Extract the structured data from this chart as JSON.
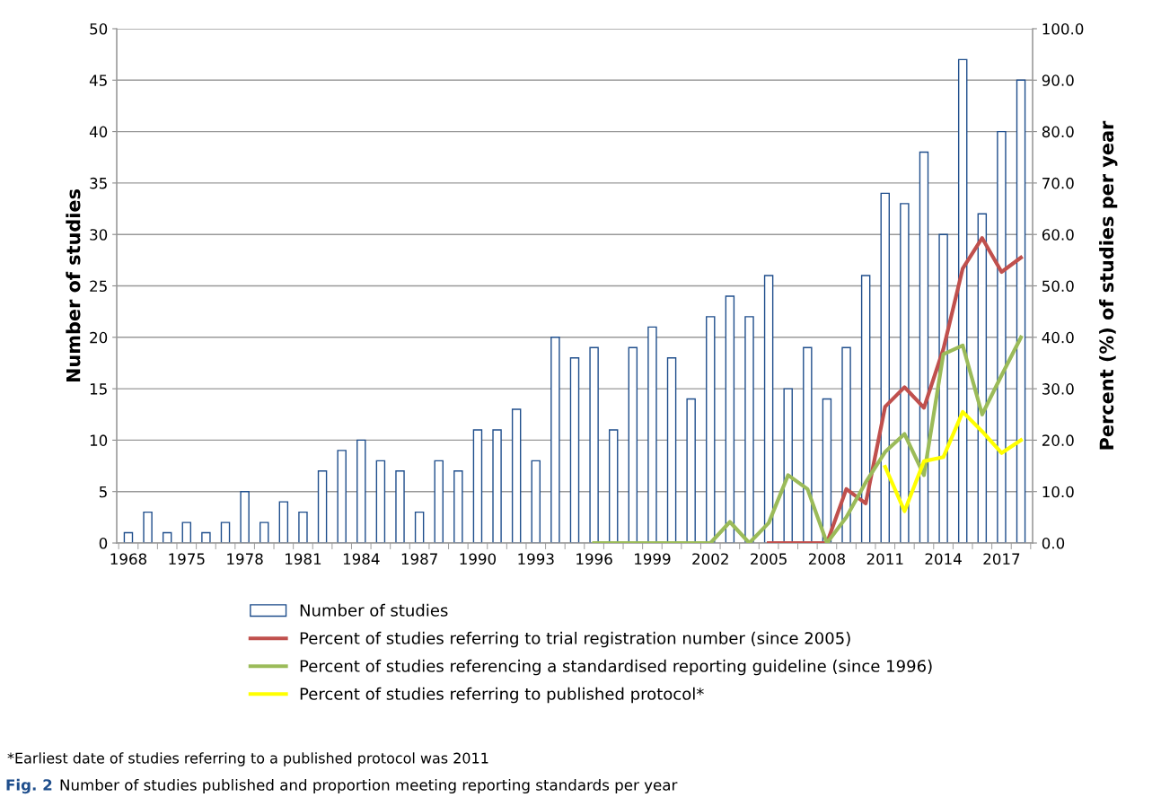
{
  "chart_data": {
    "type": "bar",
    "ylabel": "Number of studies",
    "y2label": "Percent (%) of studies per year",
    "categories": [
      "1968",
      null,
      null,
      "1975",
      null,
      null,
      "1978",
      null,
      null,
      "1981",
      null,
      null,
      "1984",
      null,
      null,
      "1987",
      null,
      null,
      "1990",
      null,
      null,
      "1993",
      null,
      null,
      "1996",
      null,
      null,
      "1999",
      null,
      null,
      "2002",
      null,
      null,
      "2005",
      null,
      null,
      "2008",
      null,
      null,
      "2011",
      null,
      null,
      "2014",
      null,
      null,
      "2017",
      null
    ],
    "series": [
      {
        "name": "Number of studies",
        "color": "#1f4e8c",
        "values": [
          1,
          3,
          1,
          2,
          1,
          2,
          5,
          2,
          4,
          3,
          7,
          9,
          10,
          8,
          7,
          3,
          8,
          7,
          11,
          11,
          13,
          8,
          20,
          18,
          19,
          11,
          19,
          21,
          18,
          14,
          22,
          24,
          22,
          26,
          15,
          19,
          14,
          19,
          26,
          34,
          33,
          38,
          30,
          47,
          32,
          40,
          45
        ]
      },
      {
        "name": "Percent of studies referring to trial registration number (since 2005)",
        "type": "line",
        "axis": "y2",
        "color": "#c0504d",
        "values": [
          null,
          null,
          null,
          null,
          null,
          null,
          null,
          null,
          null,
          null,
          null,
          null,
          null,
          null,
          null,
          null,
          null,
          null,
          null,
          null,
          null,
          null,
          null,
          null,
          null,
          null,
          null,
          null,
          null,
          null,
          null,
          null,
          null,
          0,
          0,
          0,
          0,
          10.5,
          7.7,
          26.5,
          30.3,
          26.3,
          37.7,
          53.4,
          59.3,
          52.7,
          55.5
        ]
      },
      {
        "name": "Percent of studies referencing a standardised reporting guideline (since 1996)",
        "type": "line",
        "axis": "y2",
        "color": "#9bbb59",
        "values": [
          null,
          null,
          null,
          null,
          null,
          null,
          null,
          null,
          null,
          null,
          null,
          null,
          null,
          null,
          null,
          null,
          null,
          null,
          null,
          null,
          null,
          null,
          null,
          null,
          0,
          0,
          0,
          0,
          0,
          0,
          0,
          4.1,
          0,
          3.9,
          13.2,
          10.5,
          0,
          5,
          11.8,
          17.7,
          21.2,
          13.2,
          36.7,
          38.4,
          25,
          32.6,
          40
        ]
      },
      {
        "name": "Percent of studies referring to published protocol*",
        "type": "line",
        "axis": "y2",
        "color": "#ffff00",
        "values": [
          null,
          null,
          null,
          null,
          null,
          null,
          null,
          null,
          null,
          null,
          null,
          null,
          null,
          null,
          null,
          null,
          null,
          null,
          null,
          null,
          null,
          null,
          null,
          null,
          null,
          null,
          null,
          null,
          null,
          null,
          null,
          null,
          null,
          null,
          null,
          null,
          null,
          null,
          null,
          14.8,
          6.2,
          15.9,
          16.7,
          25.5,
          21.7,
          17.5,
          20
        ]
      }
    ],
    "ylim": [
      0,
      50
    ],
    "yticks": [
      0,
      5,
      10,
      15,
      20,
      25,
      30,
      35,
      40,
      45,
      50
    ],
    "y2lim": [
      0,
      100
    ],
    "y2ticks": [
      {
        "value": 0,
        "label": "0.0"
      },
      {
        "value": 10,
        "label": "10.0"
      },
      {
        "value": 20,
        "label": "20.0"
      },
      {
        "value": 30,
        "label": "30.0"
      },
      {
        "value": 40,
        "label": "40.0"
      },
      {
        "value": 50,
        "label": "50.0"
      },
      {
        "value": 60,
        "label": "60.0"
      },
      {
        "value": 70,
        "label": "70.0"
      },
      {
        "value": 80,
        "label": "80.0"
      },
      {
        "value": 90,
        "label": "90.0"
      },
      {
        "value": 100,
        "label": "100.0"
      }
    ],
    "grid": "y",
    "legend": "bottom",
    "line_style": "solid",
    "marker": "none",
    "annotations": [
      "*Earliest date of studies referring to a published protocol was 2011",
      "Fig. 2",
      "Number of studies published and proportion meeting reporting standards per year"
    ]
  }
}
